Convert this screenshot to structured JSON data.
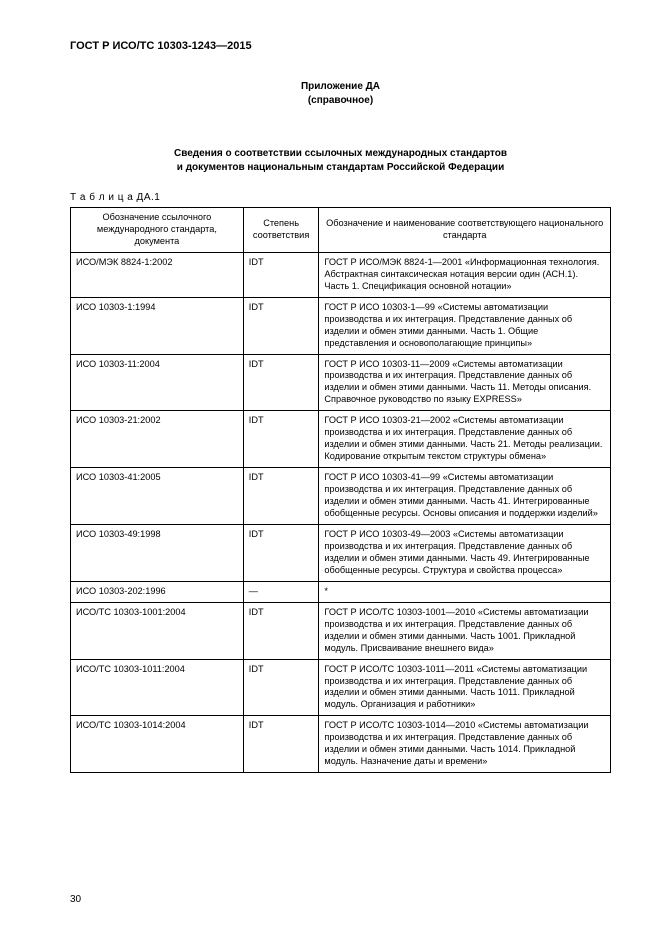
{
  "doc_code": "ГОСТ Р ИСО/ТС 10303-1243—2015",
  "appendix": {
    "line1": "Приложение ДА",
    "line2": "(справочное)"
  },
  "title": {
    "line1": "Сведения о соответствии ссылочных международных стандартов",
    "line2": "и документов национальным стандартам Российской Федерации"
  },
  "table_label": "Т а б л и ц а  ДА.1",
  "columns": {
    "c1": "Обозначение ссылочного международного стандарта, документа",
    "c2": "Степень соответствия",
    "c3": "Обозначение и наименование соответствующего национального стандарта"
  },
  "rows": [
    {
      "ref": "ИСО/МЭК 8824-1:2002",
      "degree": "IDT",
      "desc": "ГОСТ Р ИСО/МЭК 8824-1—2001 «Информационная технология. Абстрактная синтаксическая нотация версии один (АСН.1). Часть 1. Спецификация основной нотации»"
    },
    {
      "ref": "ИСО 10303-1:1994",
      "degree": "IDT",
      "desc": "ГОСТ Р ИСО 10303-1—99 «Системы автоматизации производства и их интеграция. Представление данных об изделии и обмен этими данными. Часть 1. Общие представления и основополагающие принципы»"
    },
    {
      "ref": "ИСО 10303-11:2004",
      "degree": "IDT",
      "desc": "ГОСТ Р ИСО 10303-11—2009 «Системы автоматизации производства и их интеграция. Представление данных об изделии и обмен этими данными. Часть 11. Методы описания. Справочное руководство по языку EXPRESS»"
    },
    {
      "ref": "ИСО 10303-21:2002",
      "degree": "IDT",
      "desc": "ГОСТ Р ИСО 10303-21—2002 «Системы автоматизации производства и их интеграция. Представление данных об изделии и обмен этими данными. Часть 21. Методы реализации. Кодирование открытым текстом структуры обмена»"
    },
    {
      "ref": "ИСО 10303-41:2005",
      "degree": "IDT",
      "desc": "ГОСТ Р ИСО 10303-41—99 «Системы автоматизации производства и их интеграция. Представление данных об изделии и обмен этими данными. Часть 41. Интегрированные обобщенные ресурсы. Основы описания и поддержки изделий»"
    },
    {
      "ref": "ИСО 10303-49:1998",
      "degree": "IDT",
      "desc": "ГОСТ Р ИСО 10303-49—2003 «Системы автоматизации производства и их интеграция. Представление данных об изделии и обмен этими данными. Часть 49. Интегрированные обобщенные ресурсы. Структура и свойства процесса»"
    },
    {
      "ref": "ИСО 10303-202:1996",
      "degree": "—",
      "desc": "*",
      "dash_row": true
    },
    {
      "ref": "ИСО/ТС 10303-1001:2004",
      "degree": "IDT",
      "desc": "ГОСТ Р ИСО/ТС 10303-1001—2010 «Системы автоматизации производства и их интеграция. Представление данных об изделии и обмен этими данными. Часть 1001. Прикладной модуль. Присваивание внешнего вида»"
    },
    {
      "ref": "ИСО/ТС 10303-1011:2004",
      "degree": "IDT",
      "desc": "ГОСТ Р ИСО/ТС 10303-1011—2011 «Системы автоматизации производства и их интеграция. Представление данных об изделии и обмен этими данными. Часть 1011. Прикладной модуль. Организация и работники»"
    },
    {
      "ref": "ИСО/ТС 10303-1014:2004",
      "degree": "IDT",
      "desc": "ГОСТ Р ИСО/ТС 10303-1014—2010 «Системы автоматизации производства и их интеграция. Представление данных об изделии и обмен этими данными. Часть 1014. Прикладной модуль. Назначение даты и времени»"
    }
  ],
  "page_number": "30"
}
